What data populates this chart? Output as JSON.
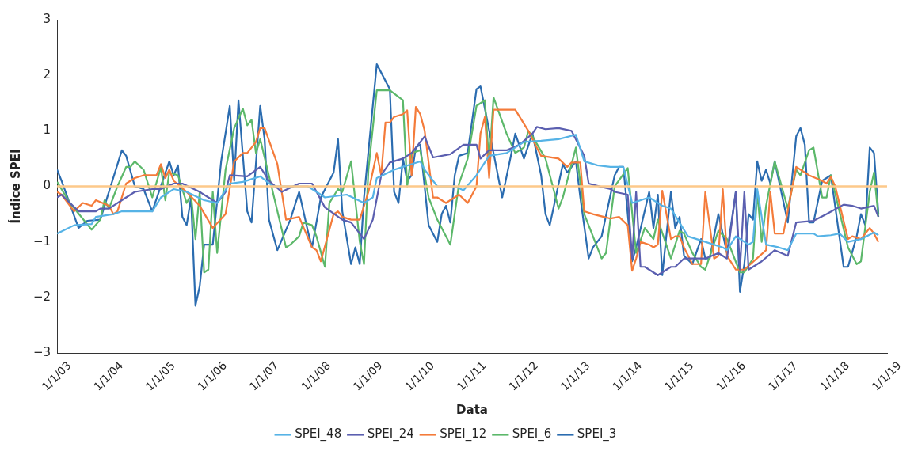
{
  "chart_data": {
    "type": "line",
    "xlabel": "Data",
    "ylabel": "Índice SPEI",
    "ylim": [
      -3,
      3
    ],
    "yticks": [
      -3,
      -2,
      -1,
      0,
      1,
      2,
      3
    ],
    "xlim": [
      "2003-01",
      "2019-01"
    ],
    "xticks": [
      {
        "value": "2003-01",
        "label": "1/1/03"
      },
      {
        "value": "2004-01",
        "label": "1/1/04"
      },
      {
        "value": "2005-01",
        "label": "1/1/05"
      },
      {
        "value": "2006-01",
        "label": "1/1/06"
      },
      {
        "value": "2007-01",
        "label": "1/1/07"
      },
      {
        "value": "2008-01",
        "label": "1/1/08"
      },
      {
        "value": "2009-01",
        "label": "1/1/09"
      },
      {
        "value": "2010-01",
        "label": "1/1/10"
      },
      {
        "value": "2011-01",
        "label": "1/1/11"
      },
      {
        "value": "2012-01",
        "label": "1/1/12"
      },
      {
        "value": "2013-01",
        "label": "1/1/13"
      },
      {
        "value": "2014-01",
        "label": "1/1/14"
      },
      {
        "value": "2015-01",
        "label": "1/1/15"
      },
      {
        "value": "2016-01",
        "label": "1/1/16"
      },
      {
        "value": "2017-01",
        "label": "1/1/17"
      },
      {
        "value": "2018-01",
        "label": "1/1/18"
      },
      {
        "value": "2019-01",
        "label": "1/1/19"
      }
    ],
    "grid": false,
    "legend": "bottom",
    "marker": "none",
    "line_style": "solid",
    "ref_lines": [
      {
        "axis": "y",
        "value": 0,
        "color": "#fdc98a"
      }
    ],
    "series": [
      {
        "name": "SPEI_48",
        "color": "#56b3e6",
        "x": [
          "2003-01",
          "2003-05",
          "2003-09",
          "2003-10",
          "2004-02",
          "2004-04",
          "2004-07",
          "2004-11",
          "2005-01",
          "2005-04",
          "2005-07",
          "2005-11",
          "2006-02",
          "2006-05",
          "2006-08",
          "2006-12",
          "2007-03",
          "2007-11",
          "2008-02",
          "2008-03",
          "2008-08",
          "2008-12",
          "2009-02",
          "2009-03",
          "2009-07",
          "2010-01",
          "2010-02",
          "2010-05",
          "2010-09",
          "2010-11",
          "2011-02",
          "2011-05",
          "2011-09",
          "2012-01",
          "2012-05",
          "2012-09",
          "2013-01",
          "2013-03",
          "2013-06",
          "2013-09",
          "2013-12",
          "2014-02",
          "2014-06",
          "2014-09",
          "2014-11",
          "2015-03",
          "2015-07",
          "2015-11",
          "2015-12",
          "2016-02",
          "2016-05",
          "2016-06",
          "2016-07",
          "2016-09",
          "2016-12",
          "2017-02",
          "2017-04",
          "2017-08",
          "2017-09",
          "2017-12",
          "2018-02",
          "2018-04",
          "2018-07",
          "2018-10",
          "2018-11"
        ],
        "values": [
          -0.85,
          -0.7,
          -0.68,
          -0.55,
          -0.5,
          -0.45,
          -0.45,
          -0.45,
          -0.2,
          -0.05,
          -0.1,
          -0.25,
          -0.3,
          0.05,
          0.08,
          0.18,
          0.0,
          0.0,
          -0.15,
          -0.2,
          -0.15,
          -0.3,
          -0.2,
          0.15,
          0.3,
          0.45,
          0.3,
          0.0,
          0.0,
          -0.07,
          0.2,
          0.55,
          0.6,
          0.8,
          0.82,
          0.85,
          0.93,
          0.45,
          0.38,
          0.35,
          0.35,
          -0.3,
          -0.2,
          -0.35,
          -0.4,
          -0.9,
          -1.0,
          -1.1,
          -1.15,
          -0.9,
          -1.05,
          -1.0,
          -0.05,
          -1.05,
          -1.1,
          -1.15,
          -0.85,
          -0.85,
          -0.9,
          -0.88,
          -0.85,
          -1.0,
          -0.95,
          -0.83,
          -0.88
        ]
      },
      {
        "name": "SPEI_24",
        "color": "#5b5fb0",
        "x": [
          "2003-01",
          "2003-02",
          "2003-06",
          "2003-10",
          "2003-11",
          "2004-01",
          "2004-04",
          "2004-06",
          "2004-07",
          "2004-11",
          "2005-01",
          "2005-04",
          "2005-06",
          "2005-10",
          "2005-12",
          "2006-02",
          "2006-04",
          "2006-05",
          "2006-09",
          "2006-12",
          "2007-02",
          "2007-05",
          "2007-09",
          "2007-12",
          "2008-03",
          "2008-07",
          "2008-09",
          "2008-12",
          "2009-02",
          "2009-04",
          "2009-06",
          "2009-09",
          "2009-11",
          "2010-02",
          "2010-04",
          "2010-08",
          "2010-11",
          "2011-02",
          "2011-03",
          "2011-05",
          "2011-09",
          "2011-12",
          "2012-03",
          "2012-04",
          "2012-06",
          "2012-09",
          "2012-12",
          "2013-03",
          "2013-04",
          "2013-09",
          "2013-10",
          "2014-01",
          "2014-02",
          "2014-03",
          "2014-04",
          "2014-05",
          "2014-08",
          "2014-11",
          "2014-12",
          "2015-02",
          "2015-05",
          "2015-07",
          "2015-10",
          "2015-12",
          "2016-02",
          "2016-03",
          "2016-04",
          "2016-05",
          "2016-08",
          "2016-11",
          "2017-02",
          "2017-04",
          "2017-08",
          "2017-11",
          "2018-03",
          "2018-05",
          "2018-07",
          "2018-10",
          "2018-11"
        ],
        "values": [
          -0.2,
          -0.15,
          -0.45,
          -0.45,
          -0.4,
          -0.4,
          -0.25,
          -0.15,
          -0.1,
          -0.05,
          -0.05,
          0.05,
          0.05,
          -0.1,
          -0.2,
          -0.3,
          -0.1,
          0.2,
          0.18,
          0.35,
          0.1,
          -0.1,
          0.05,
          0.05,
          -0.38,
          -0.6,
          -0.65,
          -0.95,
          -0.6,
          0.2,
          0.43,
          0.5,
          0.6,
          0.9,
          0.52,
          0.58,
          0.75,
          0.75,
          0.5,
          0.65,
          0.65,
          0.75,
          0.95,
          1.07,
          1.03,
          1.05,
          1.0,
          0.55,
          0.05,
          -0.05,
          -0.1,
          -0.15,
          -1.3,
          -0.1,
          -1.45,
          -1.45,
          -1.6,
          -1.45,
          -1.45,
          -1.3,
          -1.3,
          -1.3,
          -1.2,
          -1.3,
          -0.1,
          -1.5,
          -0.1,
          -1.5,
          -1.35,
          -1.15,
          -1.25,
          -0.65,
          -0.62,
          -0.5,
          -0.33,
          -0.35,
          -0.4,
          -0.35,
          -0.55
        ]
      },
      {
        "name": "SPEI_12",
        "color": "#f47b3a",
        "x": [
          "2003-01",
          "2003-02",
          "2003-05",
          "2003-07",
          "2003-09",
          "2003-10",
          "2004-01",
          "2004-02",
          "2004-03",
          "2004-05",
          "2004-07",
          "2004-09",
          "2004-12",
          "2005-01",
          "2005-02",
          "2005-03",
          "2005-04",
          "2005-07",
          "2005-10",
          "2006-01",
          "2006-04",
          "2006-06",
          "2006-08",
          "2006-09",
          "2006-11",
          "2006-12",
          "2007-01",
          "2007-04",
          "2007-06",
          "2007-09",
          "2007-12",
          "2008-01",
          "2008-02",
          "2008-05",
          "2008-06",
          "2008-07",
          "2008-09",
          "2008-11",
          "2009-01",
          "2009-03",
          "2009-04",
          "2009-05",
          "2009-06",
          "2009-07",
          "2009-09",
          "2009-10",
          "2009-11",
          "2009-12",
          "2010-01",
          "2010-02",
          "2010-04",
          "2010-05",
          "2010-07",
          "2010-10",
          "2010-12",
          "2011-02",
          "2011-03",
          "2011-04",
          "2011-05",
          "2011-06",
          "2011-10",
          "2011-11",
          "2012-02",
          "2012-03",
          "2012-05",
          "2012-09",
          "2012-11",
          "2012-12",
          "2013-02",
          "2013-03",
          "2013-05",
          "2013-09",
          "2013-11",
          "2014-01",
          "2014-02",
          "2014-03",
          "2014-04",
          "2014-06",
          "2014-07",
          "2014-08",
          "2014-09",
          "2014-11",
          "2014-12",
          "2015-01",
          "2015-02",
          "2015-04",
          "2015-06",
          "2015-07",
          "2015-09",
          "2015-10",
          "2015-11",
          "2015-12",
          "2016-02",
          "2016-04",
          "2016-09",
          "2016-10",
          "2016-11",
          "2017-01",
          "2017-04",
          "2017-06",
          "2017-07",
          "2017-10",
          "2017-11",
          "2017-12",
          "2018-01",
          "2018-04",
          "2018-05",
          "2018-07",
          "2018-09",
          "2018-10",
          "2018-11"
        ],
        "values": [
          -0.1,
          -0.15,
          -0.45,
          -0.3,
          -0.35,
          -0.25,
          -0.35,
          -0.5,
          -0.45,
          0.05,
          0.15,
          0.2,
          0.2,
          0.4,
          0.15,
          0.3,
          0.1,
          -0.1,
          -0.35,
          -0.75,
          -0.5,
          0.45,
          0.6,
          0.6,
          0.8,
          1.05,
          1.05,
          0.4,
          -0.6,
          -0.55,
          -1.1,
          -1.15,
          -1.35,
          -0.5,
          -0.45,
          -0.55,
          -0.6,
          -0.6,
          -0.1,
          0.6,
          0.2,
          1.15,
          1.15,
          1.25,
          1.3,
          1.37,
          0.2,
          1.43,
          1.3,
          1.0,
          -0.2,
          -0.2,
          -0.3,
          -0.15,
          -0.3,
          0.0,
          0.95,
          1.25,
          0.15,
          1.38,
          1.38,
          1.38,
          1.0,
          0.85,
          0.55,
          0.5,
          0.35,
          0.43,
          0.43,
          -0.45,
          -0.5,
          -0.58,
          -0.55,
          -0.7,
          -1.52,
          -1.3,
          -1.0,
          -1.05,
          -1.1,
          -1.05,
          -0.08,
          -0.95,
          -0.9,
          -0.9,
          -1.1,
          -1.4,
          -1.4,
          -0.1,
          -1.3,
          -1.25,
          -0.05,
          -1.25,
          -1.5,
          -1.5,
          -1.15,
          -0.1,
          -0.85,
          -0.85,
          0.35,
          0.25,
          0.2,
          0.1,
          0.05,
          0.17,
          0.0,
          -0.95,
          -0.9,
          -0.95,
          -0.75,
          -0.85,
          -1.0
        ]
      },
      {
        "name": "SPEI_6",
        "color": "#5cb86a",
        "x": [
          "2003-01",
          "2003-04",
          "2003-09",
          "2003-11",
          "2003-12",
          "2004-01",
          "2004-03",
          "2004-05",
          "2004-06",
          "2004-07",
          "2004-09",
          "2004-11",
          "2005-01",
          "2005-02",
          "2005-03",
          "2005-05",
          "2005-07",
          "2005-08",
          "2005-09",
          "2005-10",
          "2005-11",
          "2005-12",
          "2006-01",
          "2006-02",
          "2006-04",
          "2006-06",
          "2006-08",
          "2006-09",
          "2006-10",
          "2006-11",
          "2006-12",
          "2007-06",
          "2007-07",
          "2007-09",
          "2007-10",
          "2007-12",
          "2008-01",
          "2008-03",
          "2008-04",
          "2008-06",
          "2008-07",
          "2008-09",
          "2008-11",
          "2008-12",
          "2009-01",
          "2009-03",
          "2009-06",
          "2009-09",
          "2009-10",
          "2009-11",
          "2010-01",
          "2010-03",
          "2010-05",
          "2010-08",
          "2010-10",
          "2010-12",
          "2011-02",
          "2011-04",
          "2011-05",
          "2011-06",
          "2011-09",
          "2011-11",
          "2012-01",
          "2012-02",
          "2012-03",
          "2012-06",
          "2012-09",
          "2012-10",
          "2013-01",
          "2013-03",
          "2013-07",
          "2013-08",
          "2013-10",
          "2014-01",
          "2014-03",
          "2014-05",
          "2014-07",
          "2014-08",
          "2014-11",
          "2015-01",
          "2015-02",
          "2015-04",
          "2015-06",
          "2015-07",
          "2015-10",
          "2015-12",
          "2016-03",
          "2016-04",
          "2016-06",
          "2016-07",
          "2016-08",
          "2016-09",
          "2016-11",
          "2017-02",
          "2017-04",
          "2017-05",
          "2017-07",
          "2017-08",
          "2017-10",
          "2017-11",
          "2017-12",
          "2018-04",
          "2018-06",
          "2018-07",
          "2018-09",
          "2018-10",
          "2018-11"
        ],
        "values": [
          0.08,
          -0.3,
          -0.78,
          -0.6,
          -0.25,
          -0.4,
          0.0,
          0.35,
          0.35,
          0.45,
          0.3,
          -0.2,
          0.35,
          -0.25,
          0.25,
          0.2,
          -0.3,
          -0.15,
          -0.95,
          -0.1,
          -1.55,
          -1.5,
          -0.1,
          -1.2,
          0.3,
          1.05,
          1.4,
          1.1,
          1.2,
          0.6,
          0.85,
          -1.1,
          -1.05,
          -0.9,
          -0.65,
          -0.7,
          -0.9,
          -1.45,
          -0.3,
          -0.05,
          -0.1,
          0.45,
          -1.0,
          -1.4,
          0.3,
          1.73,
          1.73,
          1.55,
          0.0,
          0.6,
          0.65,
          -0.2,
          -0.6,
          -1.05,
          0.05,
          0.5,
          1.45,
          1.55,
          0.4,
          1.6,
          0.95,
          0.6,
          0.7,
          1.0,
          0.9,
          0.5,
          -0.4,
          -0.2,
          0.7,
          -0.5,
          -1.3,
          -1.2,
          0.0,
          0.33,
          -1.2,
          -0.75,
          -0.95,
          -0.6,
          -1.3,
          -0.8,
          -0.85,
          -1.2,
          -1.45,
          -1.5,
          -0.8,
          -0.95,
          -1.55,
          -1.55,
          -1.3,
          -0.1,
          -1.0,
          -0.35,
          0.45,
          -0.4,
          0.3,
          0.2,
          0.65,
          0.7,
          -0.2,
          -0.2,
          0.2,
          -1.1,
          -1.4,
          -1.35,
          -0.1,
          0.25,
          -0.55
        ]
      },
      {
        "name": "SPEI_3",
        "color": "#2b6cb0",
        "x": [
          "2003-01",
          "2003-02",
          "2003-06",
          "2003-08",
          "2003-11",
          "2004-04",
          "2004-05",
          "2004-07",
          "2004-09",
          "2004-11",
          "2005-03",
          "2005-04",
          "2005-05",
          "2005-06",
          "2005-07",
          "2005-08",
          "2005-09",
          "2005-10",
          "2005-11",
          "2006-01",
          "2006-03",
          "2006-05",
          "2006-06",
          "2006-07",
          "2006-09",
          "2006-10",
          "2006-12",
          "2007-01",
          "2007-02",
          "2007-04",
          "2007-07",
          "2007-09",
          "2007-11",
          "2007-12",
          "2008-02",
          "2008-05",
          "2008-06",
          "2008-07",
          "2008-09",
          "2008-10",
          "2008-11",
          "2008-12",
          "2009-03",
          "2009-06",
          "2009-07",
          "2009-08",
          "2009-09",
          "2009-10",
          "2009-11",
          "2009-12",
          "2010-01",
          "2010-03",
          "2010-05",
          "2010-06",
          "2010-07",
          "2010-08",
          "2010-09",
          "2010-10",
          "2010-12",
          "2011-02",
          "2011-03",
          "2011-04",
          "2011-06",
          "2011-08",
          "2011-10",
          "2011-11",
          "2012-01",
          "2012-03",
          "2012-05",
          "2012-06",
          "2012-07",
          "2012-10",
          "2012-11",
          "2013-01",
          "2013-02",
          "2013-04",
          "2013-05",
          "2013-07",
          "2013-10",
          "2013-11",
          "2013-12",
          "2014-02",
          "2014-03",
          "2014-06",
          "2014-07",
          "2014-08",
          "2014-09",
          "2014-11",
          "2014-12",
          "2015-01",
          "2015-02",
          "2015-04",
          "2015-06",
          "2015-07",
          "2015-08",
          "2015-10",
          "2015-12",
          "2016-02",
          "2016-03",
          "2016-04",
          "2016-05",
          "2016-06",
          "2016-07",
          "2016-08",
          "2016-09",
          "2016-10",
          "2016-11",
          "2017-02",
          "2017-04",
          "2017-05",
          "2017-06",
          "2017-07",
          "2017-08",
          "2017-10",
          "2017-12",
          "2018-03",
          "2018-04",
          "2018-06",
          "2018-07",
          "2018-08",
          "2018-09",
          "2018-10",
          "2018-11"
        ],
        "values": [
          0.3,
          0.1,
          -0.75,
          -0.62,
          -0.6,
          0.65,
          0.55,
          0.0,
          -0.05,
          -0.45,
          0.45,
          0.2,
          0.38,
          -0.55,
          -0.7,
          -0.2,
          -2.15,
          -1.8,
          -1.05,
          -1.05,
          0.45,
          1.45,
          0.1,
          1.55,
          -0.45,
          -0.65,
          1.45,
          0.85,
          -0.6,
          -1.15,
          -0.6,
          -0.1,
          -0.8,
          -1.1,
          -0.2,
          0.25,
          0.85,
          -0.45,
          -1.4,
          -1.1,
          -1.4,
          -0.2,
          2.2,
          1.75,
          -0.1,
          -0.3,
          0.5,
          0.1,
          0.2,
          0.7,
          0.75,
          -0.7,
          -1.0,
          -0.5,
          -0.35,
          -0.65,
          0.2,
          0.55,
          0.6,
          1.75,
          1.8,
          1.4,
          0.6,
          -0.2,
          0.55,
          0.95,
          0.5,
          0.95,
          0.2,
          -0.5,
          -0.7,
          0.4,
          0.25,
          0.45,
          -0.2,
          -1.3,
          -1.1,
          -0.9,
          0.2,
          0.35,
          0.35,
          -1.35,
          -1.1,
          -0.1,
          -0.75,
          -0.15,
          -1.6,
          -0.1,
          -0.75,
          -0.55,
          -1.25,
          -1.4,
          -0.95,
          -1.3,
          -1.3,
          -0.5,
          -1.2,
          -0.1,
          -1.9,
          -1.4,
          -0.5,
          -0.6,
          0.45,
          0.1,
          0.3,
          0.05,
          0.45,
          -0.65,
          0.9,
          1.05,
          0.75,
          -0.65,
          -0.65,
          0.1,
          0.2,
          -1.45,
          -1.45,
          -0.9,
          -0.5,
          -0.7,
          0.7,
          0.6,
          -0.5
        ]
      }
    ]
  }
}
